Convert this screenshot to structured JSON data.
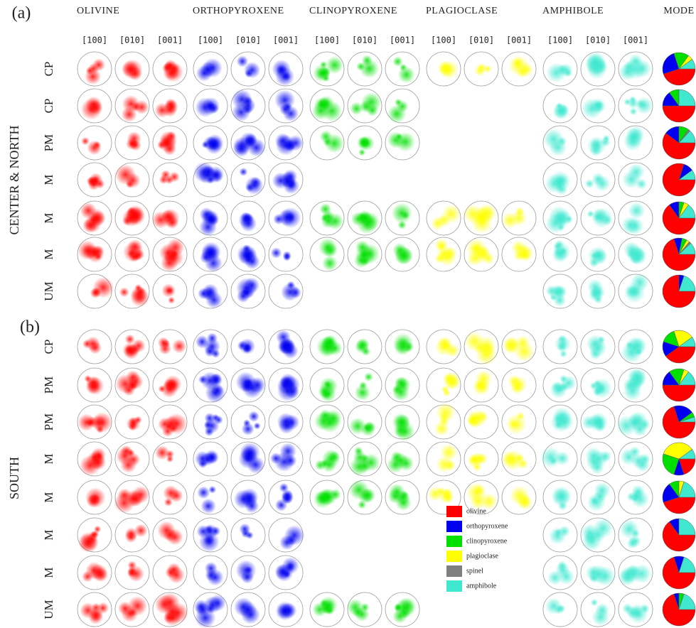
{
  "columns": {
    "minerals": [
      "OLIVINE",
      "ORTHOPYROXENE",
      "CLINOPYROXENE",
      "PLAGIOCLASE",
      "AMPHIBOLE"
    ],
    "mode": "MODE",
    "axes": [
      "[100]",
      "[010]",
      "[001]"
    ]
  },
  "legend": [
    {
      "name": "olivine",
      "color": "#ff0000"
    },
    {
      "name": "orthopyroxene",
      "color": "#0000ee"
    },
    {
      "name": "clinopyroxene",
      "color": "#00e000"
    },
    {
      "name": "plagioclase",
      "color": "#ffff00"
    },
    {
      "name": "spinel",
      "color": "#808080"
    },
    {
      "name": "amphibole",
      "color": "#40e8d0"
    }
  ],
  "panels": [
    {
      "label": "(a)",
      "region": "CENTER & NORTH",
      "rows": [
        {
          "lithology": "CP",
          "mode": [
            45,
            25,
            15,
            5,
            0,
            10
          ]
        },
        {
          "lithology": "CP",
          "mode": [
            50,
            15,
            10,
            0,
            0,
            25
          ]
        },
        {
          "lithology": "PM",
          "mode": [
            60,
            15,
            10,
            0,
            2,
            13
          ]
        },
        {
          "lithology": "M",
          "mode": [
            80,
            10,
            0,
            0,
            0,
            10
          ]
        },
        {
          "lithology": "M",
          "mode": [
            65,
            10,
            5,
            5,
            0,
            15
          ]
        },
        {
          "lithology": "M",
          "mode": [
            70,
            8,
            5,
            3,
            2,
            12
          ]
        },
        {
          "lithology": "UM",
          "mode": [
            75,
            5,
            0,
            0,
            0,
            20
          ]
        }
      ]
    },
    {
      "label": "(b)",
      "region": "SOUTH",
      "rows": [
        {
          "lithology": "CP",
          "mode": [
            40,
            15,
            15,
            20,
            0,
            10
          ]
        },
        {
          "lithology": "PM",
          "mode": [
            50,
            15,
            15,
            5,
            0,
            15
          ]
        },
        {
          "lithology": "PM",
          "mode": [
            70,
            20,
            5,
            0,
            0,
            5
          ]
        },
        {
          "lithology": "M",
          "mode": [
            20,
            10,
            25,
            35,
            0,
            10
          ]
        },
        {
          "lithology": "M",
          "mode": [
            45,
            20,
            10,
            5,
            0,
            20
          ]
        },
        {
          "lithology": "M",
          "mode": [
            65,
            10,
            0,
            0,
            0,
            25
          ]
        },
        {
          "lithology": "M",
          "mode": [
            70,
            10,
            0,
            0,
            0,
            20
          ]
        },
        {
          "lithology": "UM",
          "mode": [
            70,
            5,
            5,
            0,
            0,
            20
          ]
        }
      ]
    }
  ]
}
